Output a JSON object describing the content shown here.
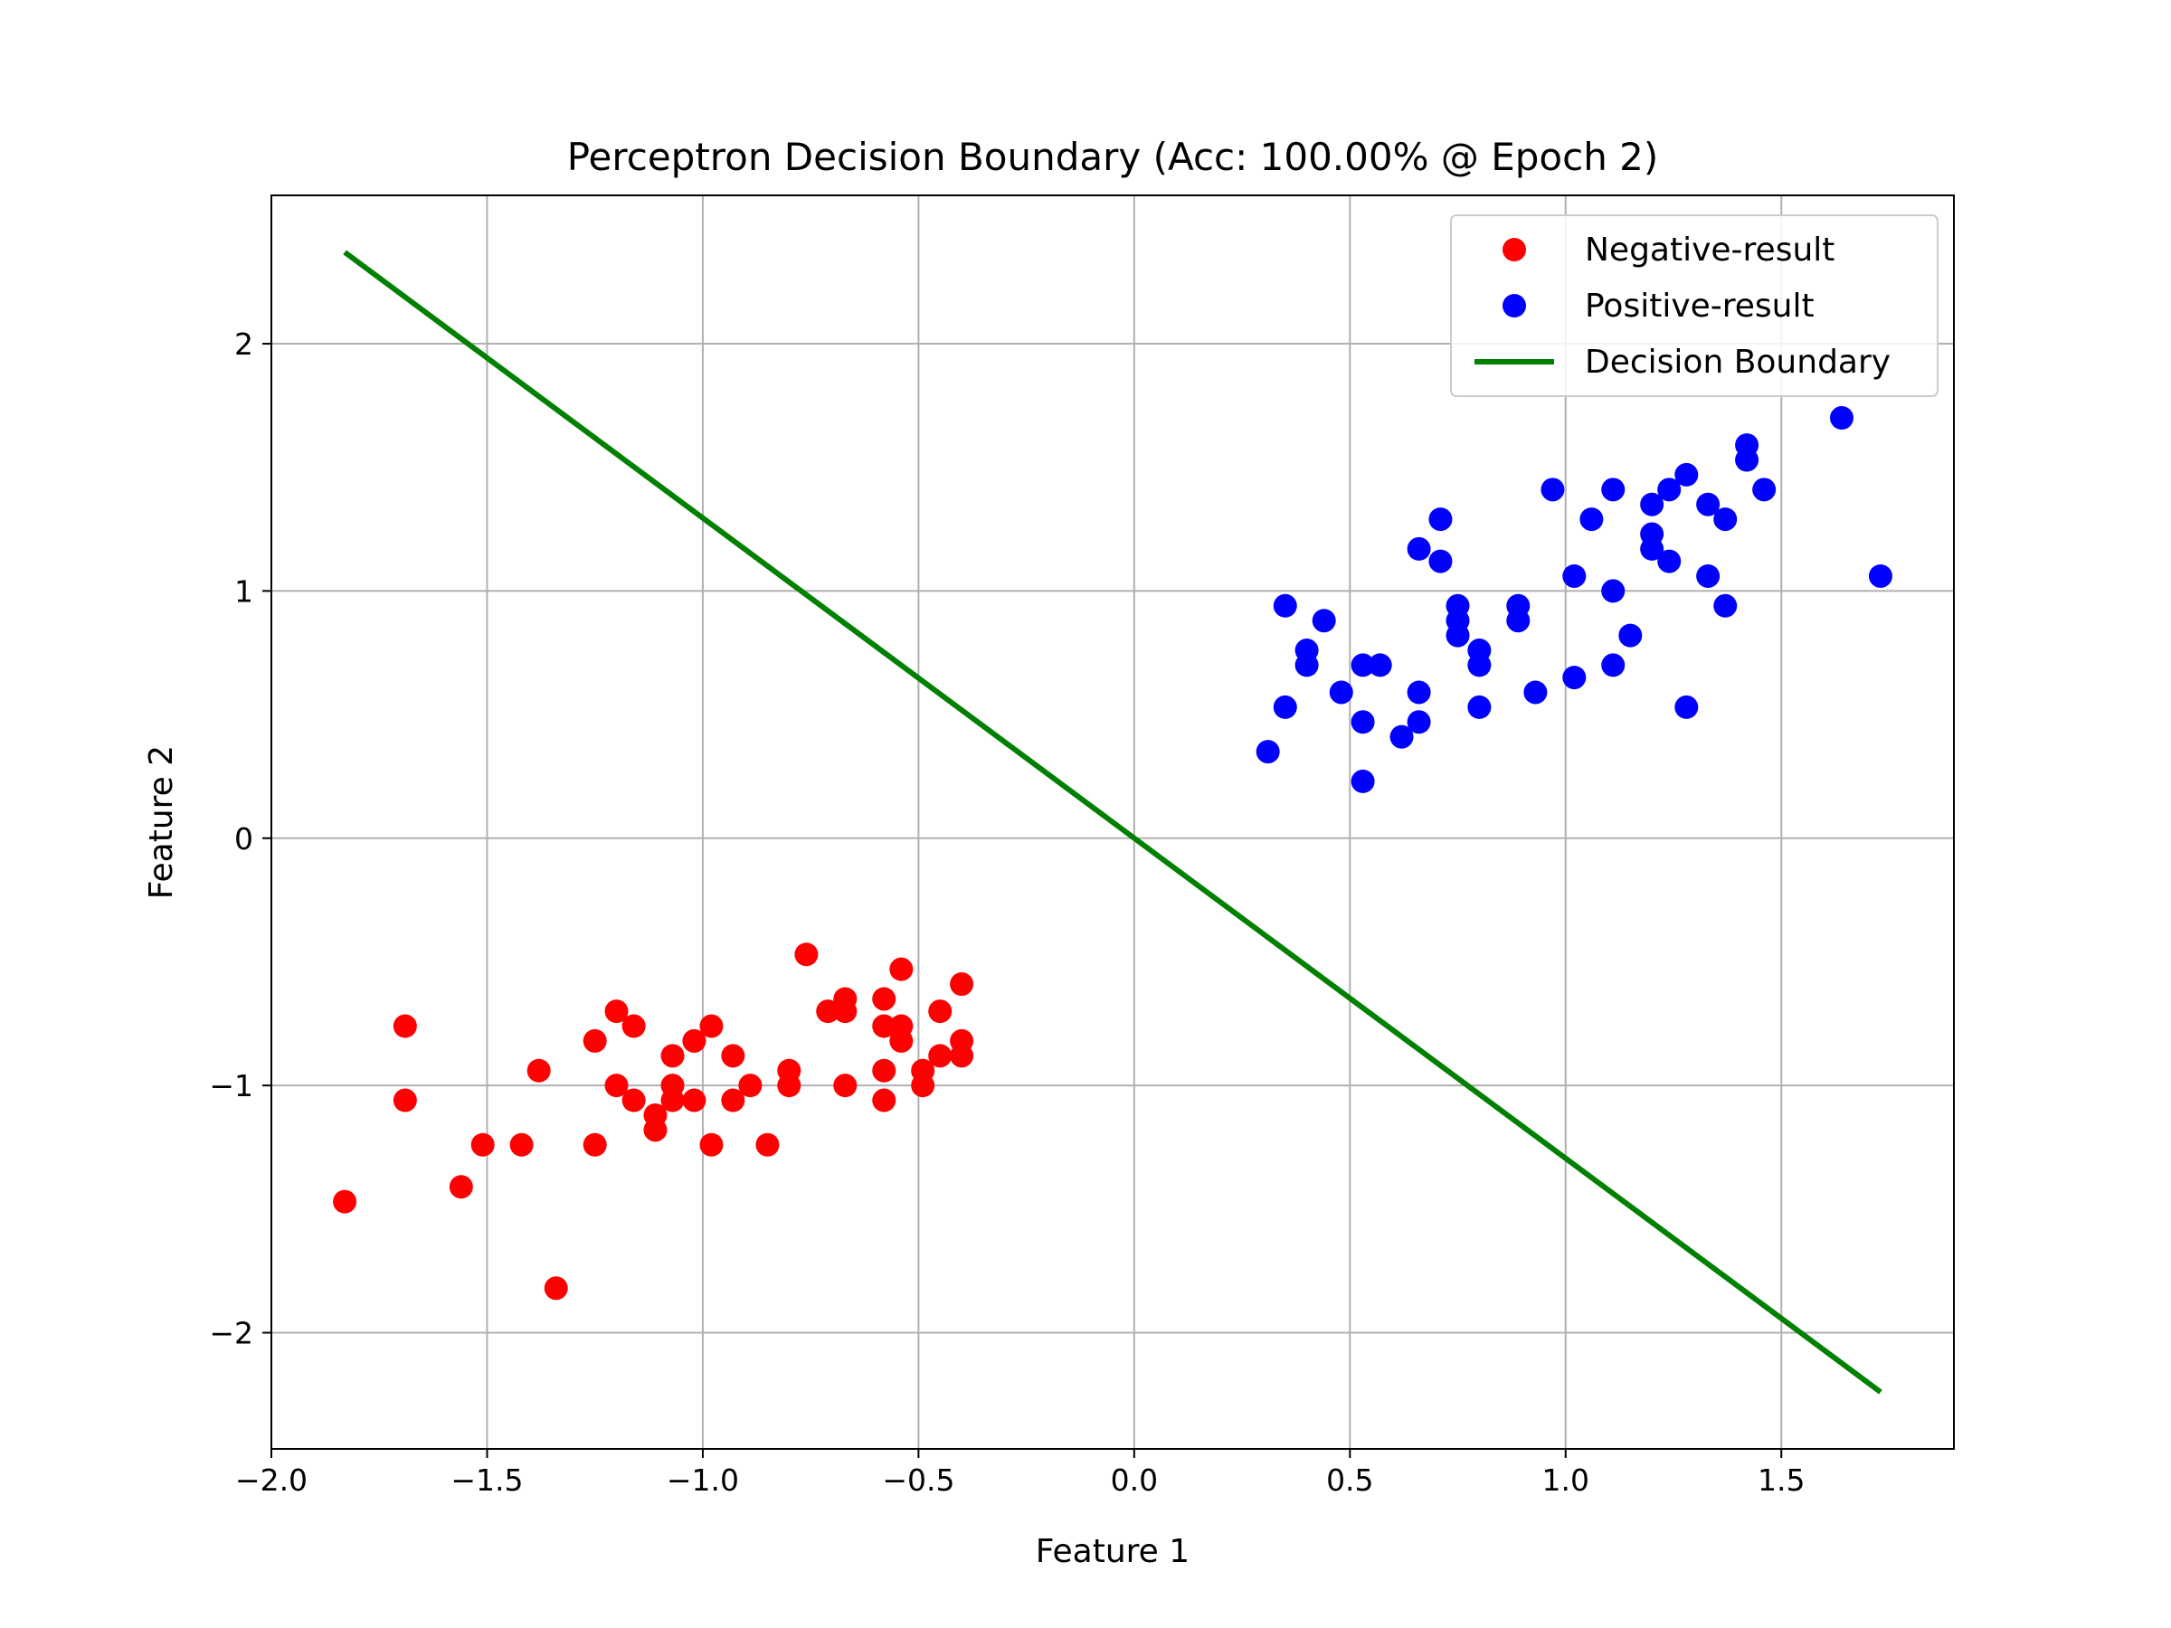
{
  "chart_data": {
    "type": "scatter",
    "title": "Perceptron Decision Boundary (Acc: 100.00% @ Epoch 2)",
    "xlabel": "Feature 1",
    "ylabel": "Feature 2",
    "xlim": [
      -2.0,
      1.9
    ],
    "ylim": [
      -2.47,
      2.6
    ],
    "xticks": [
      -2.0,
      -1.5,
      -1.0,
      -0.5,
      0.0,
      0.5,
      1.0,
      1.5
    ],
    "xtick_labels": [
      "−2.0",
      "−1.5",
      "−1.0",
      "−0.5",
      "0.0",
      "0.5",
      "1.0",
      "1.5"
    ],
    "yticks": [
      -2,
      -1,
      0,
      1,
      2
    ],
    "ytick_labels": [
      "−2",
      "−1",
      "0",
      "1",
      "2"
    ],
    "grid": true,
    "legend_position": "top-right",
    "series": [
      {
        "name": "Negative-result",
        "kind": "scatter",
        "color": "#ff0000",
        "points": [
          [
            -1.83,
            -1.47
          ],
          [
            -1.69,
            -0.76
          ],
          [
            -1.69,
            -1.06
          ],
          [
            -1.56,
            -1.41
          ],
          [
            -1.51,
            -1.24
          ],
          [
            -1.42,
            -1.24
          ],
          [
            -1.38,
            -0.94
          ],
          [
            -1.34,
            -1.82
          ],
          [
            -1.25,
            -0.82
          ],
          [
            -1.25,
            -1.24
          ],
          [
            -1.2,
            -0.7
          ],
          [
            -1.2,
            -1.0
          ],
          [
            -1.16,
            -0.76
          ],
          [
            -1.16,
            -1.06
          ],
          [
            -1.11,
            -1.12
          ],
          [
            -1.11,
            -1.18
          ],
          [
            -1.07,
            -0.88
          ],
          [
            -1.07,
            -1.0
          ],
          [
            -1.07,
            -1.06
          ],
          [
            -1.02,
            -0.82
          ],
          [
            -1.02,
            -1.06
          ],
          [
            -0.98,
            -0.76
          ],
          [
            -0.98,
            -1.24
          ],
          [
            -0.93,
            -0.88
          ],
          [
            -0.93,
            -1.06
          ],
          [
            -0.89,
            -1.0
          ],
          [
            -0.85,
            -1.24
          ],
          [
            -0.8,
            -0.94
          ],
          [
            -0.8,
            -1.0
          ],
          [
            -0.76,
            -0.47
          ],
          [
            -0.71,
            -0.7
          ],
          [
            -0.67,
            -0.65
          ],
          [
            -0.67,
            -0.7
          ],
          [
            -0.67,
            -1.0
          ],
          [
            -0.58,
            -0.65
          ],
          [
            -0.58,
            -0.76
          ],
          [
            -0.58,
            -0.94
          ],
          [
            -0.58,
            -1.06
          ],
          [
            -0.54,
            -0.53
          ],
          [
            -0.54,
            -0.76
          ],
          [
            -0.54,
            -0.82
          ],
          [
            -0.49,
            -0.94
          ],
          [
            -0.49,
            -1.0
          ],
          [
            -0.45,
            -0.7
          ],
          [
            -0.45,
            -0.88
          ],
          [
            -0.4,
            -0.59
          ],
          [
            -0.4,
            -0.82
          ],
          [
            -0.4,
            -0.88
          ]
        ]
      },
      {
        "name": "Positive-result",
        "kind": "scatter",
        "color": "#0000ff",
        "points": [
          [
            0.31,
            0.35
          ],
          [
            0.35,
            0.53
          ],
          [
            0.35,
            0.94
          ],
          [
            0.4,
            0.7
          ],
          [
            0.4,
            0.76
          ],
          [
            0.44,
            0.88
          ],
          [
            0.48,
            0.59
          ],
          [
            0.53,
            0.23
          ],
          [
            0.53,
            0.47
          ],
          [
            0.53,
            0.7
          ],
          [
            0.57,
            0.7
          ],
          [
            0.62,
            0.41
          ],
          [
            0.66,
            0.47
          ],
          [
            0.66,
            0.59
          ],
          [
            0.66,
            1.17
          ],
          [
            0.71,
            1.12
          ],
          [
            0.71,
            1.29
          ],
          [
            0.75,
            0.82
          ],
          [
            0.75,
            0.88
          ],
          [
            0.75,
            0.94
          ],
          [
            0.8,
            0.53
          ],
          [
            0.8,
            0.7
          ],
          [
            0.8,
            0.76
          ],
          [
            0.89,
            0.88
          ],
          [
            0.89,
            0.94
          ],
          [
            0.93,
            0.59
          ],
          [
            0.97,
            1.41
          ],
          [
            1.02,
            0.65
          ],
          [
            1.02,
            1.06
          ],
          [
            1.06,
            1.29
          ],
          [
            1.11,
            0.7
          ],
          [
            1.11,
            1.0
          ],
          [
            1.11,
            1.41
          ],
          [
            1.15,
            0.82
          ],
          [
            1.2,
            1.17
          ],
          [
            1.2,
            1.23
          ],
          [
            1.2,
            1.35
          ],
          [
            1.24,
            1.12
          ],
          [
            1.24,
            1.41
          ],
          [
            1.28,
            0.53
          ],
          [
            1.28,
            1.47
          ],
          [
            1.33,
            1.06
          ],
          [
            1.33,
            1.35
          ],
          [
            1.37,
            0.94
          ],
          [
            1.37,
            1.29
          ],
          [
            1.42,
            1.53
          ],
          [
            1.42,
            1.59
          ],
          [
            1.46,
            1.41
          ],
          [
            1.64,
            1.7
          ],
          [
            1.73,
            1.06
          ]
        ]
      },
      {
        "name": "Decision Boundary",
        "kind": "line",
        "color": "#008000",
        "points": [
          [
            -1.83,
            2.37
          ],
          [
            1.73,
            -2.24
          ]
        ]
      }
    ]
  }
}
